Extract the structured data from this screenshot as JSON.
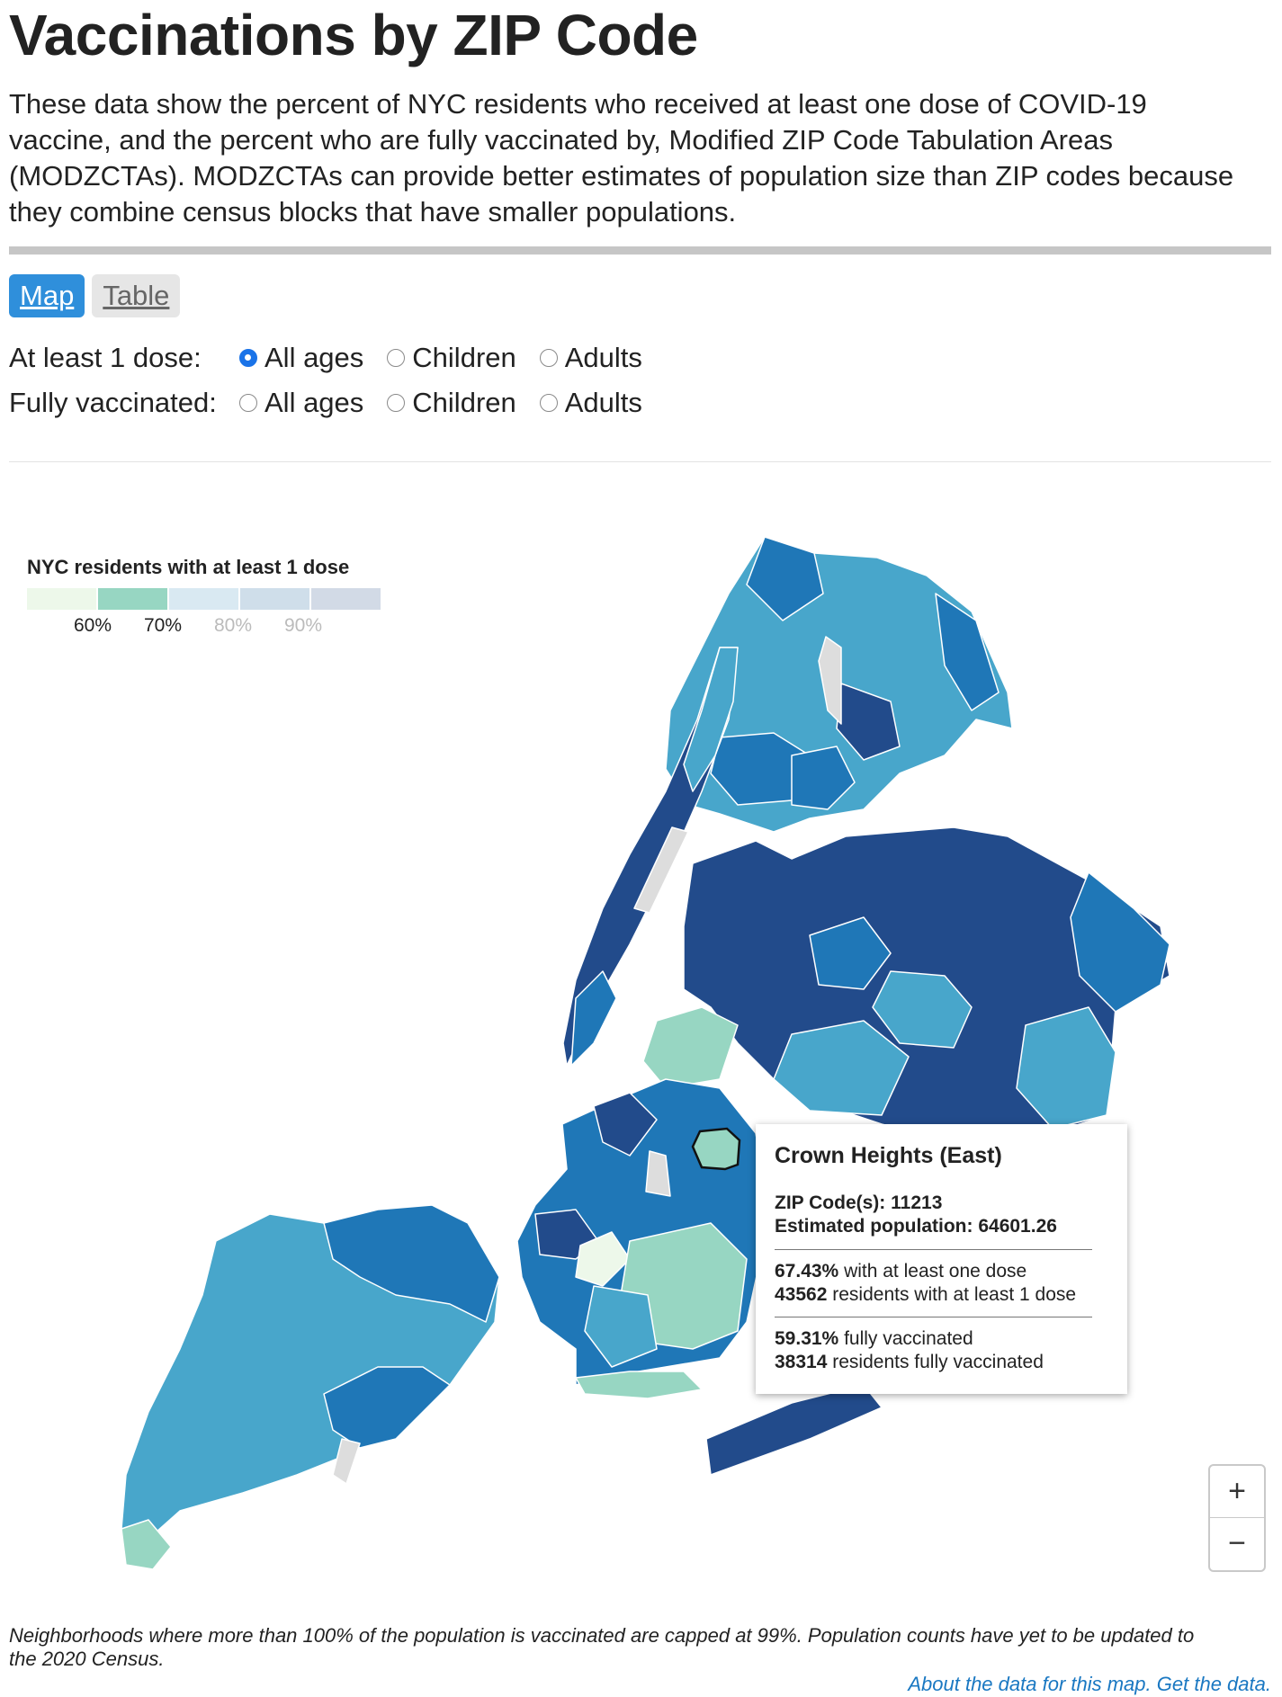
{
  "header": {
    "title": "Vaccinations by ZIP Code",
    "intro": "These data show the percent of NYC residents who received at least one dose of COVID-19 vaccine, and the percent who are fully vaccinated by, Modified ZIP Code Tabulation Areas (MODZCTAs). MODZCTAs can provide better estimates of population size than ZIP codes because they combine census blocks that have smaller populations."
  },
  "tabs": [
    {
      "label": "Map",
      "active": true
    },
    {
      "label": "Table",
      "active": false
    }
  ],
  "filters": {
    "dose": {
      "label": "At least 1 dose:",
      "options": [
        "All ages",
        "Children",
        "Adults"
      ],
      "selected": "All ages"
    },
    "full": {
      "label": "Fully vaccinated:",
      "options": [
        "All ages",
        "Children",
        "Adults"
      ],
      "selected": null
    }
  },
  "legend": {
    "title": "NYC residents with at least 1 dose",
    "colors": [
      "#edf8ea",
      "#97d6c2",
      "#d9e9f2",
      "#cfdeea",
      "#d2dae6"
    ],
    "ticks": [
      "60%",
      "70%",
      "80%",
      "90%"
    ],
    "tick_colors": [
      "#222222",
      "#222222",
      "#bbbbbb",
      "#bbbbbb"
    ]
  },
  "map_colors": {
    "darkest": "#224b8b",
    "dark": "#1f77b7",
    "mid": "#48a6cb",
    "light": "#97d6c2",
    "lightest": "#edf8ea",
    "nodata": "#dddddd"
  },
  "tooltip": {
    "name": "Crown Heights (East)",
    "zip_label": "ZIP Code(s):",
    "zip": "11213",
    "pop_label": "Estimated population:",
    "pop": "64601.26",
    "dose_pct": "67.43%",
    "dose_pct_text": "with at least one dose",
    "dose_count": "43562",
    "dose_count_text": "residents with at least 1 dose",
    "full_pct": "59.31%",
    "full_pct_text": "fully vaccinated",
    "full_count": "38314",
    "full_count_text": "residents fully vaccinated"
  },
  "zoom": {
    "in": "+",
    "out": "−"
  },
  "footer": {
    "note": "Neighborhoods where more than 100% of the population is vaccinated are capped at 99%. Population counts have yet to be updated to the 2020 Census.",
    "about_link": "About the data for this map",
    "sep": ".",
    "get_link": "Get the data",
    "end": "."
  }
}
